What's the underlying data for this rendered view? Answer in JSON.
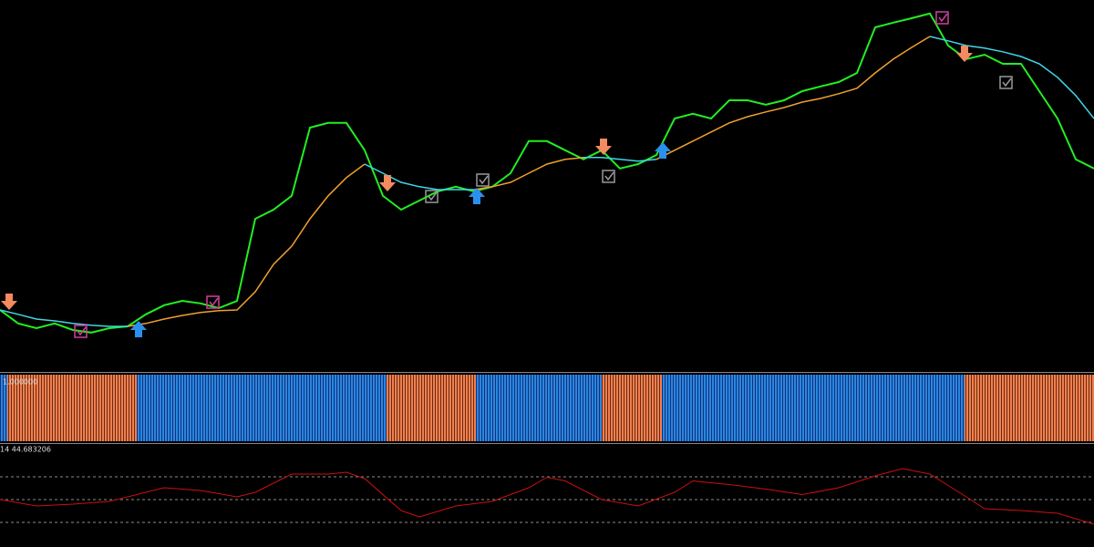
{
  "chart_data": [
    {
      "type": "line",
      "ylim": [
        0,
        100
      ],
      "series": [
        {
          "color": "#22ee22",
          "values": [
            15,
            11.3,
            10,
            11.3,
            9.5,
            8.8,
            10,
            10.5,
            13.8,
            16.3,
            17.5,
            16.8,
            15.5,
            17.5,
            40,
            42.5,
            46.3,
            65,
            66.3,
            66.3,
            58.8,
            46.3,
            42.5,
            45,
            47.5,
            48.8,
            47.5,
            48.8,
            52.5,
            61.3,
            61.3,
            58.8,
            56.3,
            58.8,
            53.8,
            55,
            57.5,
            67.5,
            68.8,
            67.5,
            72.5,
            72.5,
            71.3,
            72.5,
            75,
            76.3,
            77.5,
            80,
            92.5,
            93.8,
            95,
            96.3,
            87.5,
            83.8,
            85,
            82.5,
            82.5,
            75,
            67.5,
            56.3,
            53.8
          ]
        },
        {
          "color": "#3fd6e8",
          "values": [
            15,
            13.8,
            12.5,
            12,
            11.3,
            10.8,
            10.5,
            10.5,
            null,
            null,
            null,
            null,
            null,
            null,
            null,
            null,
            null,
            null,
            null,
            null,
            55,
            52.5,
            50,
            48.8,
            48,
            48,
            48,
            null,
            null,
            null,
            null,
            null,
            56.8,
            56.8,
            56.3,
            55.8,
            56.3,
            null,
            null,
            null,
            null,
            null,
            null,
            null,
            null,
            null,
            null,
            null,
            null,
            null,
            null,
            90,
            88.8,
            87.5,
            86.8,
            85.8,
            84.5,
            82.5,
            78.8,
            73.8,
            67.5
          ]
        },
        {
          "color": "#f0a030",
          "values": [
            null,
            null,
            null,
            null,
            null,
            null,
            null,
            10.5,
            11.3,
            12.5,
            13.5,
            14.3,
            14.8,
            15,
            20,
            27.5,
            32.5,
            40,
            46.3,
            51.3,
            55,
            null,
            null,
            null,
            null,
            null,
            48,
            48.8,
            50,
            52.5,
            55,
            56.3,
            56.8,
            null,
            null,
            null,
            56.3,
            58.8,
            61.3,
            63.8,
            66.3,
            68,
            69.3,
            70.5,
            72,
            73,
            74.3,
            75.8,
            80,
            83.8,
            87,
            90,
            null,
            null,
            null,
            null,
            null,
            null,
            null,
            null,
            null
          ]
        }
      ]
    },
    {
      "type": "line",
      "label": "14 44.683206",
      "color": "#cc1010",
      "ylim": [
        8.4,
        98.8
      ],
      "xlim": [
        0,
        60
      ],
      "levels": [
        30,
        50,
        70
      ],
      "x": [
        0,
        2,
        4,
        6,
        8,
        9,
        11,
        13,
        14,
        16,
        18,
        19,
        20,
        22,
        23,
        25,
        27,
        29,
        30,
        31,
        33,
        35,
        37,
        38,
        40,
        42,
        44,
        46,
        48,
        49.5,
        51,
        53,
        54,
        56,
        58,
        60
      ],
      "values": [
        50,
        44.4,
        46,
        48.4,
        56.4,
        60.4,
        58,
        52.4,
        56.4,
        72.4,
        72.4,
        74,
        68.4,
        40.4,
        34.8,
        44.4,
        48.4,
        60.4,
        69.6,
        66.4,
        50,
        44.4,
        56.4,
        66.4,
        63.2,
        59.2,
        54.4,
        60.4,
        70.8,
        77.2,
        72.4,
        52.4,
        42,
        40.4,
        38,
        28.4
      ]
    }
  ],
  "trend_panel": {
    "label": "1.000000"
  }
}
